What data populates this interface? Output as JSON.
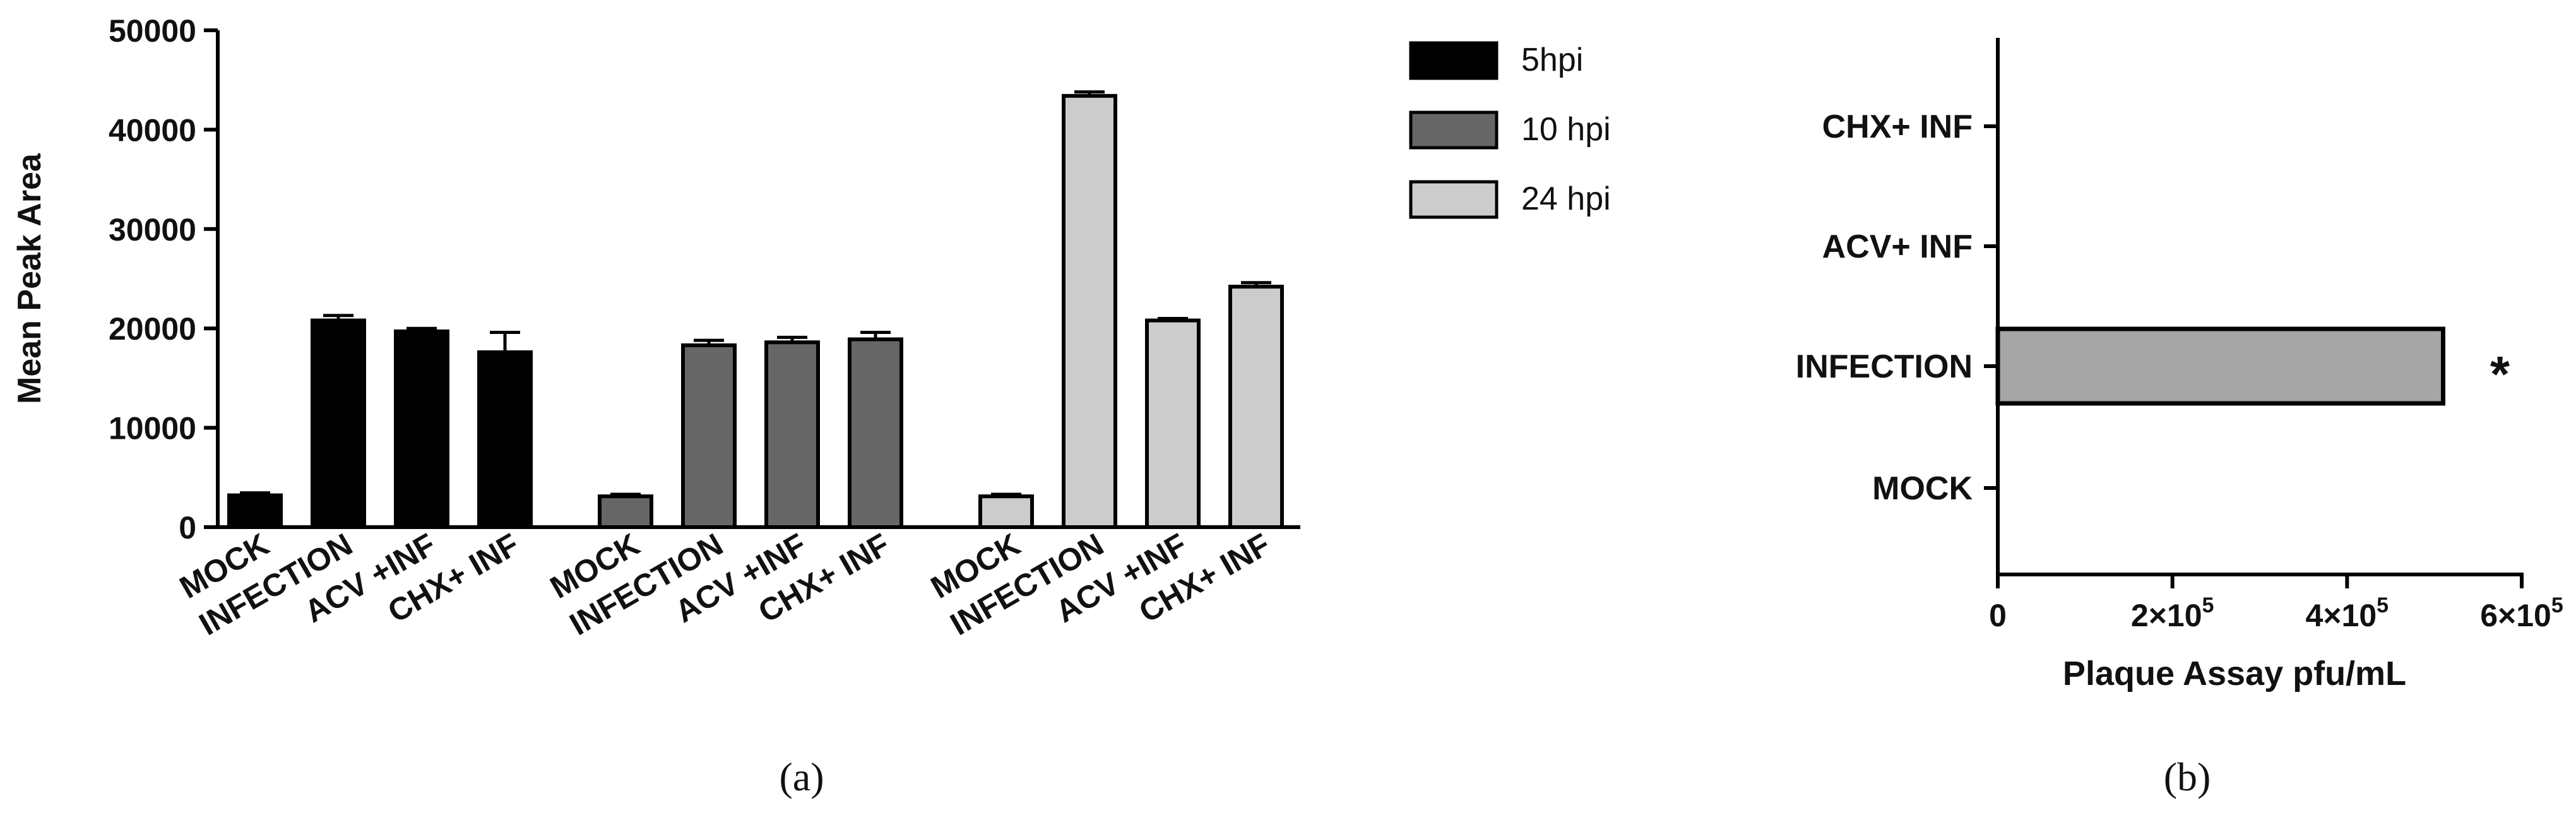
{
  "chart_data": [
    {
      "type": "bar",
      "panel_label": "(a)",
      "ylabel": "Mean Peak Area",
      "ylim": [
        0,
        50000
      ],
      "yticks": [
        "0",
        "10000",
        "20000",
        "30000",
        "40000",
        "50000"
      ],
      "grid": false,
      "legend_position": "right",
      "groups": [
        {
          "name": "5hpi",
          "color": "#000000",
          "categories": [
            "MOCK",
            "INFECTION",
            "ACV +INF",
            "CHX+ INF"
          ],
          "values": [
            3200,
            20800,
            19700,
            17600
          ],
          "errors": [
            250,
            500,
            300,
            2000
          ]
        },
        {
          "name": "10 hpi",
          "color": "#666666",
          "categories": [
            "MOCK",
            "INFECTION",
            "ACV +INF",
            "CHX+ INF"
          ],
          "values": [
            3100,
            18300,
            18600,
            18900
          ],
          "errors": [
            200,
            500,
            500,
            700
          ]
        },
        {
          "name": "24 hpi",
          "color": "#cccccc",
          "categories": [
            "MOCK",
            "INFECTION",
            "ACV +INF",
            "CHX+ INF"
          ],
          "values": [
            3100,
            43400,
            20800,
            24200
          ],
          "errors": [
            200,
            400,
            200,
            400
          ]
        }
      ]
    },
    {
      "type": "bar",
      "orientation": "horizontal",
      "panel_label": "(b)",
      "xlabel": "Plaque Assay pfu/mL",
      "xlim": [
        0,
        600000
      ],
      "xticks": [
        {
          "base": "0",
          "exp": ""
        },
        {
          "base": "2×10",
          "exp": "5"
        },
        {
          "base": "4×10",
          "exp": "5"
        },
        {
          "base": "6×10",
          "exp": "5"
        }
      ],
      "categories": [
        "CHX+ INF",
        "ACV+ INF",
        "INFECTION",
        "MOCK"
      ],
      "values": [
        0,
        0,
        510000,
        0
      ],
      "bar_color": "#a6a6a6",
      "annotation": "*"
    }
  ]
}
